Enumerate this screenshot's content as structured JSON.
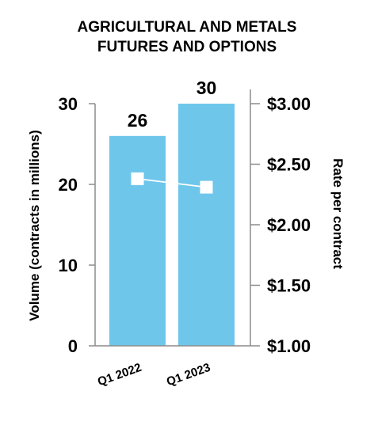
{
  "chart_data": {
    "type": "bar",
    "title_lines": [
      "AGRICULTURAL AND METALS",
      "FUTURES AND OPTIONS"
    ],
    "categories": [
      "Q1 2022",
      "Q1 2023"
    ],
    "series": [
      {
        "axis": "left",
        "type": "bar",
        "values": [
          26,
          30
        ],
        "color": "#6ec6ea"
      },
      {
        "axis": "right",
        "type": "line",
        "values": [
          2.38,
          2.31
        ],
        "color": "#ffffff"
      }
    ],
    "data_labels": [
      "26",
      "30"
    ],
    "ylabel": "Volume (contracts in millions)",
    "y2label": "Rate per contract",
    "ylim": [
      0,
      30
    ],
    "y2lim": [
      1.0,
      3.0
    ],
    "yticks": [
      "0",
      "10",
      "20",
      "30"
    ],
    "y2ticks": [
      "$1.00",
      "$1.50",
      "$2.00",
      "$2.50",
      "$3.00"
    ],
    "grid": false,
    "legend": "none"
  }
}
